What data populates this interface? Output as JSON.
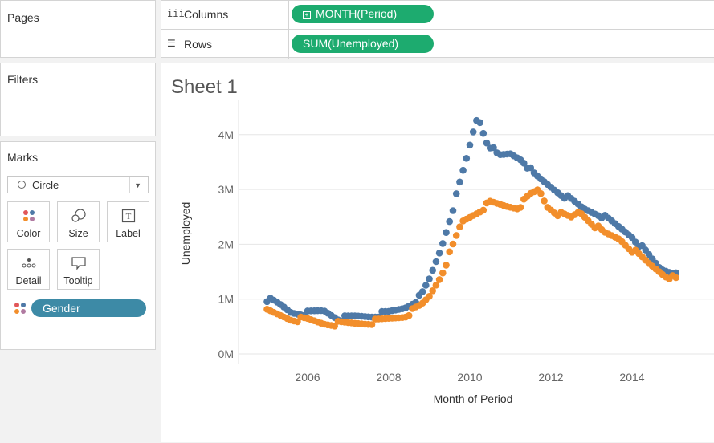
{
  "pages": {
    "title": "Pages"
  },
  "filters": {
    "title": "Filters"
  },
  "marks": {
    "title": "Marks",
    "mark_type": "Circle",
    "buttons": {
      "color": "Color",
      "size": "Size",
      "label": "Label",
      "detail": "Detail",
      "tooltip": "Tooltip"
    },
    "gender_pill": "Gender"
  },
  "shelves": {
    "columns_label": "Columns",
    "columns_pill": "MONTH(Period)",
    "rows_label": "Rows",
    "rows_pill": "SUM(Unemployed)"
  },
  "sheet": {
    "title": "Sheet 1"
  },
  "colors": {
    "series_blue": "#4e79a7",
    "series_orange": "#f28e2b",
    "pill_green": "#1dab6f",
    "gender_pill": "#3d8aa6"
  },
  "chart_data": {
    "type": "scatter",
    "xlabel": "Month of Period",
    "ylabel": "Unemployed",
    "x_ticks": [
      "2006",
      "2008",
      "2010",
      "2012",
      "2014"
    ],
    "y_ticks": [
      "0M",
      "1M",
      "2M",
      "3M",
      "4M"
    ],
    "xlim": [
      2005.0,
      2015.75
    ],
    "ylim": [
      -100000,
      4400000
    ],
    "grid": "horizontal",
    "series": [
      {
        "color": "#4e79a7",
        "anchors": [
          [
            2005.0,
            1000000
          ],
          [
            2005.3,
            900000
          ],
          [
            2005.6,
            760000
          ],
          [
            2006.0,
            740000
          ],
          [
            2006.4,
            790000
          ],
          [
            2006.8,
            640000
          ],
          [
            2007.2,
            680000
          ],
          [
            2007.6,
            700000
          ],
          [
            2008.0,
            750000
          ],
          [
            2008.4,
            850000
          ],
          [
            2008.8,
            1050000
          ],
          [
            2009.0,
            1350000
          ],
          [
            2009.3,
            1950000
          ],
          [
            2009.6,
            2700000
          ],
          [
            2009.9,
            3500000
          ],
          [
            2010.1,
            4100000
          ],
          [
            2010.2,
            4350000
          ],
          [
            2010.4,
            3900000
          ],
          [
            2010.7,
            3600000
          ],
          [
            2011.0,
            3650000
          ],
          [
            2011.3,
            3550000
          ],
          [
            2011.6,
            3250000
          ],
          [
            2012.0,
            3050000
          ],
          [
            2012.4,
            2850000
          ],
          [
            2012.8,
            2650000
          ],
          [
            2013.2,
            2550000
          ],
          [
            2013.6,
            2350000
          ],
          [
            2014.0,
            2150000
          ],
          [
            2014.4,
            1800000
          ],
          [
            2014.7,
            1550000
          ],
          [
            2015.0,
            1500000
          ],
          [
            2015.1,
            1530000
          ]
        ]
      },
      {
        "color": "#f28e2b",
        "anchors": [
          [
            2005.0,
            780000
          ],
          [
            2005.3,
            710000
          ],
          [
            2005.6,
            640000
          ],
          [
            2006.0,
            620000
          ],
          [
            2006.4,
            560000
          ],
          [
            2006.8,
            550000
          ],
          [
            2007.2,
            560000
          ],
          [
            2007.6,
            580000
          ],
          [
            2008.0,
            640000
          ],
          [
            2008.4,
            700000
          ],
          [
            2008.8,
            880000
          ],
          [
            2009.0,
            1050000
          ],
          [
            2009.3,
            1450000
          ],
          [
            2009.6,
            2000000
          ],
          [
            2009.8,
            2400000
          ],
          [
            2010.2,
            2600000
          ],
          [
            2010.5,
            2750000
          ],
          [
            2010.9,
            2700000
          ],
          [
            2011.2,
            2680000
          ],
          [
            2011.5,
            2900000
          ],
          [
            2011.7,
            3000000
          ],
          [
            2011.9,
            2700000
          ],
          [
            2012.2,
            2550000
          ],
          [
            2012.5,
            2480000
          ],
          [
            2012.7,
            2600000
          ],
          [
            2013.0,
            2400000
          ],
          [
            2013.3,
            2200000
          ],
          [
            2013.7,
            2100000
          ],
          [
            2014.0,
            1900000
          ],
          [
            2014.4,
            1650000
          ],
          [
            2014.8,
            1450000
          ],
          [
            2015.1,
            1350000
          ]
        ]
      }
    ]
  }
}
